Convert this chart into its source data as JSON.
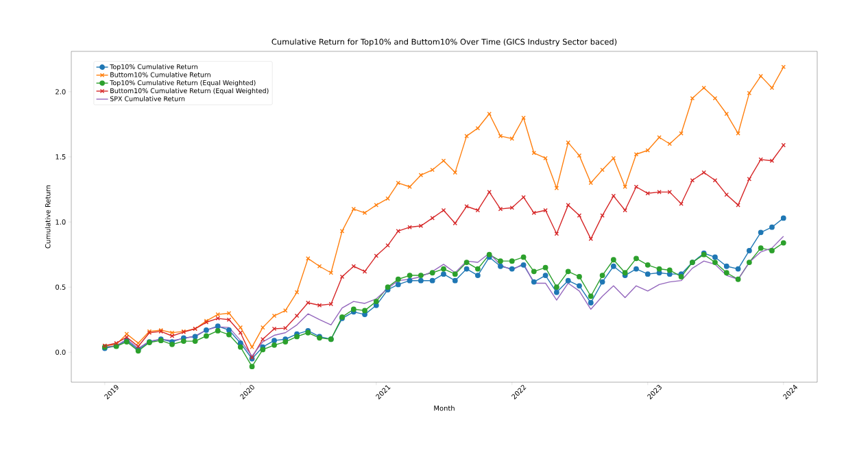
{
  "chart_data": {
    "type": "line",
    "title": "Cumulative Return for Top10% and Buttom10% Over Time (GICS Industry Sector baced)",
    "xlabel": "Month",
    "ylabel": "Cumulative Return",
    "x": [
      "2019-01",
      "2019-02",
      "2019-03",
      "2019-04",
      "2019-05",
      "2019-06",
      "2019-07",
      "2019-08",
      "2019-09",
      "2019-10",
      "2019-11",
      "2019-12",
      "2020-01",
      "2020-02",
      "2020-03",
      "2020-04",
      "2020-05",
      "2020-06",
      "2020-07",
      "2020-08",
      "2020-09",
      "2020-10",
      "2020-11",
      "2020-12",
      "2021-01",
      "2021-02",
      "2021-03",
      "2021-04",
      "2021-05",
      "2021-06",
      "2021-07",
      "2021-08",
      "2021-09",
      "2021-10",
      "2021-11",
      "2021-12",
      "2022-01",
      "2022-02",
      "2022-03",
      "2022-04",
      "2022-05",
      "2022-06",
      "2022-07",
      "2022-08",
      "2022-09",
      "2022-10",
      "2022-11",
      "2022-12",
      "2023-01",
      "2023-02",
      "2023-03",
      "2023-04",
      "2023-05",
      "2023-06",
      "2023-07",
      "2023-08",
      "2023-09",
      "2023-10",
      "2023-11",
      "2023-12",
      "2024-01"
    ],
    "series": [
      {
        "name": "Top10% Cumulative Return",
        "color": "#1f77b4",
        "marker": "circle",
        "values": [
          0.03,
          0.05,
          0.09,
          0.02,
          0.08,
          0.1,
          0.08,
          0.11,
          0.12,
          0.17,
          0.2,
          0.17,
          0.07,
          -0.05,
          0.04,
          0.09,
          0.1,
          0.14,
          0.165,
          0.12,
          0.1,
          0.26,
          0.31,
          0.29,
          0.36,
          0.48,
          0.52,
          0.55,
          0.55,
          0.55,
          0.6,
          0.55,
          0.64,
          0.59,
          0.73,
          0.66,
          0.64,
          0.67,
          0.54,
          0.59,
          0.46,
          0.55,
          0.51,
          0.38,
          0.54,
          0.66,
          0.59,
          0.64,
          0.6,
          0.61,
          0.6,
          0.6,
          0.69,
          0.76,
          0.73,
          0.66,
          0.64,
          0.78,
          0.92,
          0.96,
          1.03
        ]
      },
      {
        "name": "Buttom10% Cumulative Return",
        "color": "#ff7f0e",
        "marker": "cross",
        "values": [
          0.05,
          0.06,
          0.14,
          0.07,
          0.16,
          0.17,
          0.15,
          0.16,
          0.18,
          0.24,
          0.29,
          0.3,
          0.19,
          0.04,
          0.19,
          0.28,
          0.32,
          0.46,
          0.72,
          0.66,
          0.61,
          0.93,
          1.1,
          1.07,
          1.13,
          1.18,
          1.3,
          1.27,
          1.36,
          1.4,
          1.47,
          1.38,
          1.66,
          1.72,
          1.83,
          1.66,
          1.64,
          1.8,
          1.53,
          1.49,
          1.26,
          1.61,
          1.51,
          1.3,
          1.4,
          1.49,
          1.27,
          1.52,
          1.55,
          1.65,
          1.6,
          1.68,
          1.95,
          2.03,
          1.95,
          1.83,
          1.68,
          1.99,
          2.12,
          2.03,
          2.19
        ]
      },
      {
        "name": "Top10% Cumulative Return (Equal Weighted)",
        "color": "#2ca02c",
        "marker": "circle",
        "values": [
          0.04,
          0.045,
          0.08,
          0.01,
          0.075,
          0.09,
          0.06,
          0.085,
          0.085,
          0.125,
          0.165,
          0.135,
          0.04,
          -0.11,
          0.02,
          0.055,
          0.08,
          0.12,
          0.15,
          0.11,
          0.1,
          0.27,
          0.33,
          0.32,
          0.39,
          0.5,
          0.56,
          0.59,
          0.59,
          0.61,
          0.64,
          0.6,
          0.69,
          0.64,
          0.75,
          0.7,
          0.7,
          0.73,
          0.62,
          0.65,
          0.5,
          0.62,
          0.58,
          0.43,
          0.59,
          0.71,
          0.61,
          0.72,
          0.67,
          0.64,
          0.63,
          0.58,
          0.69,
          0.75,
          0.69,
          0.61,
          0.56,
          0.69,
          0.8,
          0.78,
          0.84
        ]
      },
      {
        "name": "Buttom10% Cumulative Return (Equal Weighted)",
        "color": "#d62728",
        "marker": "cross",
        "values": [
          0.05,
          0.07,
          0.115,
          0.045,
          0.15,
          0.16,
          0.125,
          0.155,
          0.18,
          0.23,
          0.26,
          0.25,
          0.15,
          -0.04,
          0.1,
          0.18,
          0.185,
          0.28,
          0.38,
          0.36,
          0.37,
          0.58,
          0.66,
          0.62,
          0.74,
          0.82,
          0.93,
          0.96,
          0.97,
          1.03,
          1.09,
          0.99,
          1.12,
          1.09,
          1.23,
          1.1,
          1.11,
          1.19,
          1.07,
          1.09,
          0.91,
          1.13,
          1.05,
          0.87,
          1.05,
          1.2,
          1.09,
          1.27,
          1.22,
          1.23,
          1.23,
          1.14,
          1.32,
          1.38,
          1.32,
          1.21,
          1.13,
          1.33,
          1.48,
          1.47,
          1.59
        ]
      },
      {
        "name": "SPX Cumulative Return",
        "color": "#9467bd",
        "marker": "none",
        "values": [
          0.04,
          0.05,
          0.1,
          0.03,
          0.085,
          0.1,
          0.09,
          0.105,
          0.125,
          0.17,
          0.195,
          0.19,
          0.09,
          -0.03,
          0.08,
          0.13,
          0.15,
          0.21,
          0.295,
          0.25,
          0.21,
          0.34,
          0.39,
          0.375,
          0.41,
          0.49,
          0.55,
          0.56,
          0.58,
          0.62,
          0.675,
          0.61,
          0.7,
          0.69,
          0.76,
          0.67,
          0.63,
          0.68,
          0.53,
          0.53,
          0.4,
          0.53,
          0.47,
          0.33,
          0.43,
          0.51,
          0.42,
          0.51,
          0.47,
          0.52,
          0.54,
          0.55,
          0.645,
          0.7,
          0.675,
          0.59,
          0.56,
          0.69,
          0.77,
          0.8,
          0.89
        ]
      }
    ],
    "xlim": [
      "2018-10-03",
      "2024-04-01"
    ],
    "xticks": [
      "2019",
      "2020",
      "2021",
      "2022",
      "2023",
      "2024"
    ],
    "ylim": [
      -0.23,
      2.31
    ],
    "yticks": [
      {
        "value": 0,
        "label": "0.0"
      },
      {
        "value": 0.5,
        "label": "0.5"
      },
      {
        "value": 1.0,
        "label": "1.0"
      },
      {
        "value": 1.5,
        "label": "1.5"
      },
      {
        "value": 2.0,
        "label": "2.0"
      }
    ],
    "legend": "top left",
    "grid": false,
    "line_style": "solid"
  }
}
